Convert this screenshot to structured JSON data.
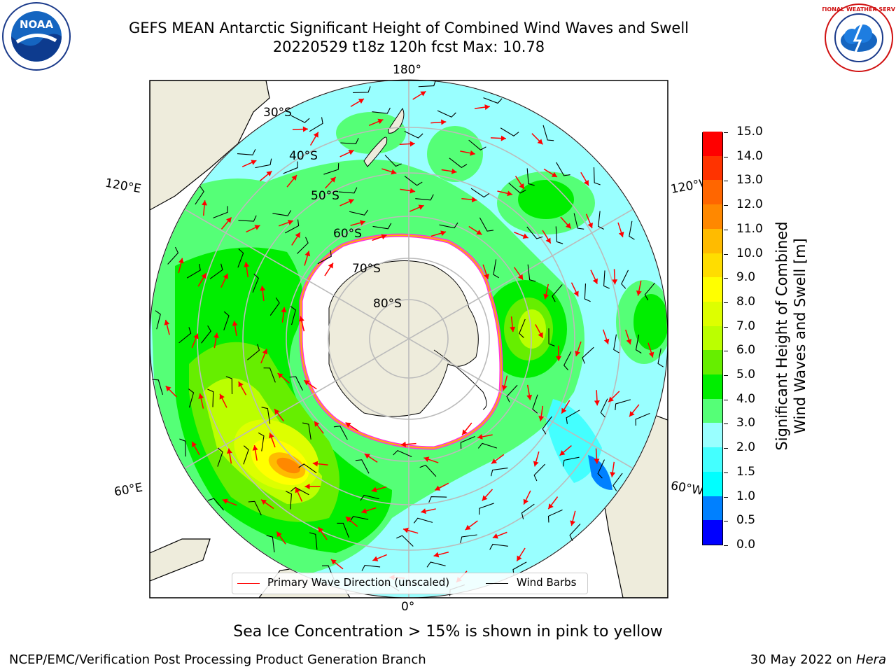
{
  "header": {
    "title_line1": "GEFS MEAN Antarctic Significant Height of Combined Wind Waves and Swell",
    "title_line2": "20220529 t18z 120h fcst   Max: 10.78"
  },
  "map": {
    "projection": "south-polar-stereographic",
    "longitude_labels": {
      "top": "180°",
      "bottom": "0°",
      "upper_left": "120°E",
      "upper_right": "120°W",
      "lower_left": "60°E",
      "lower_right": "60°W"
    },
    "latitude_labels": [
      "30°S",
      "40°S",
      "50°S",
      "60°S",
      "70°S",
      "80°S"
    ],
    "colors": {
      "land": "#eeecdc",
      "sea_ice": "#ffffff",
      "ice_edge_outer": "#ff33dd",
      "ice_edge_inner": "#ffb000",
      "wave_arrow": "#ff0000",
      "wind_barb": "#000000",
      "graticule": "#bbbbbb"
    }
  },
  "legend": {
    "primary_wave_label": "Primary Wave Direction (unscaled)",
    "wind_barbs_label": "Wind Barbs"
  },
  "colorbar": {
    "label_line1": "Significant Height of Combined",
    "label_line2": "Wind Waves and Swell [m]",
    "ticks": [
      "0.0",
      "0.5",
      "1.0",
      "1.5",
      "2.0",
      "3.0",
      "4.0",
      "5.0",
      "6.0",
      "7.0",
      "8.0",
      "9.0",
      "10.0",
      "11.0",
      "12.0",
      "13.0",
      "14.0",
      "15.0"
    ],
    "colors": [
      "#0000ff",
      "#0080ff",
      "#00ffff",
      "#44ffff",
      "#99ffff",
      "#55ff77",
      "#00ee00",
      "#66ee00",
      "#bbff00",
      "#ddff00",
      "#ffff00",
      "#ffdd00",
      "#ffbb00",
      "#ff8800",
      "#ff6600",
      "#ff3300",
      "#ff0000"
    ]
  },
  "notes": {
    "sea_ice": "Sea Ice Concentration > 15% is shown in pink to yellow"
  },
  "footer": {
    "left": "NCEP/EMC/Verification Post Processing Product Generation Branch",
    "date": "30 May 2022 on",
    "machine": "Hera"
  },
  "logos": {
    "left": "NOAA",
    "right": "NATIONAL WEATHER SERVICE"
  }
}
